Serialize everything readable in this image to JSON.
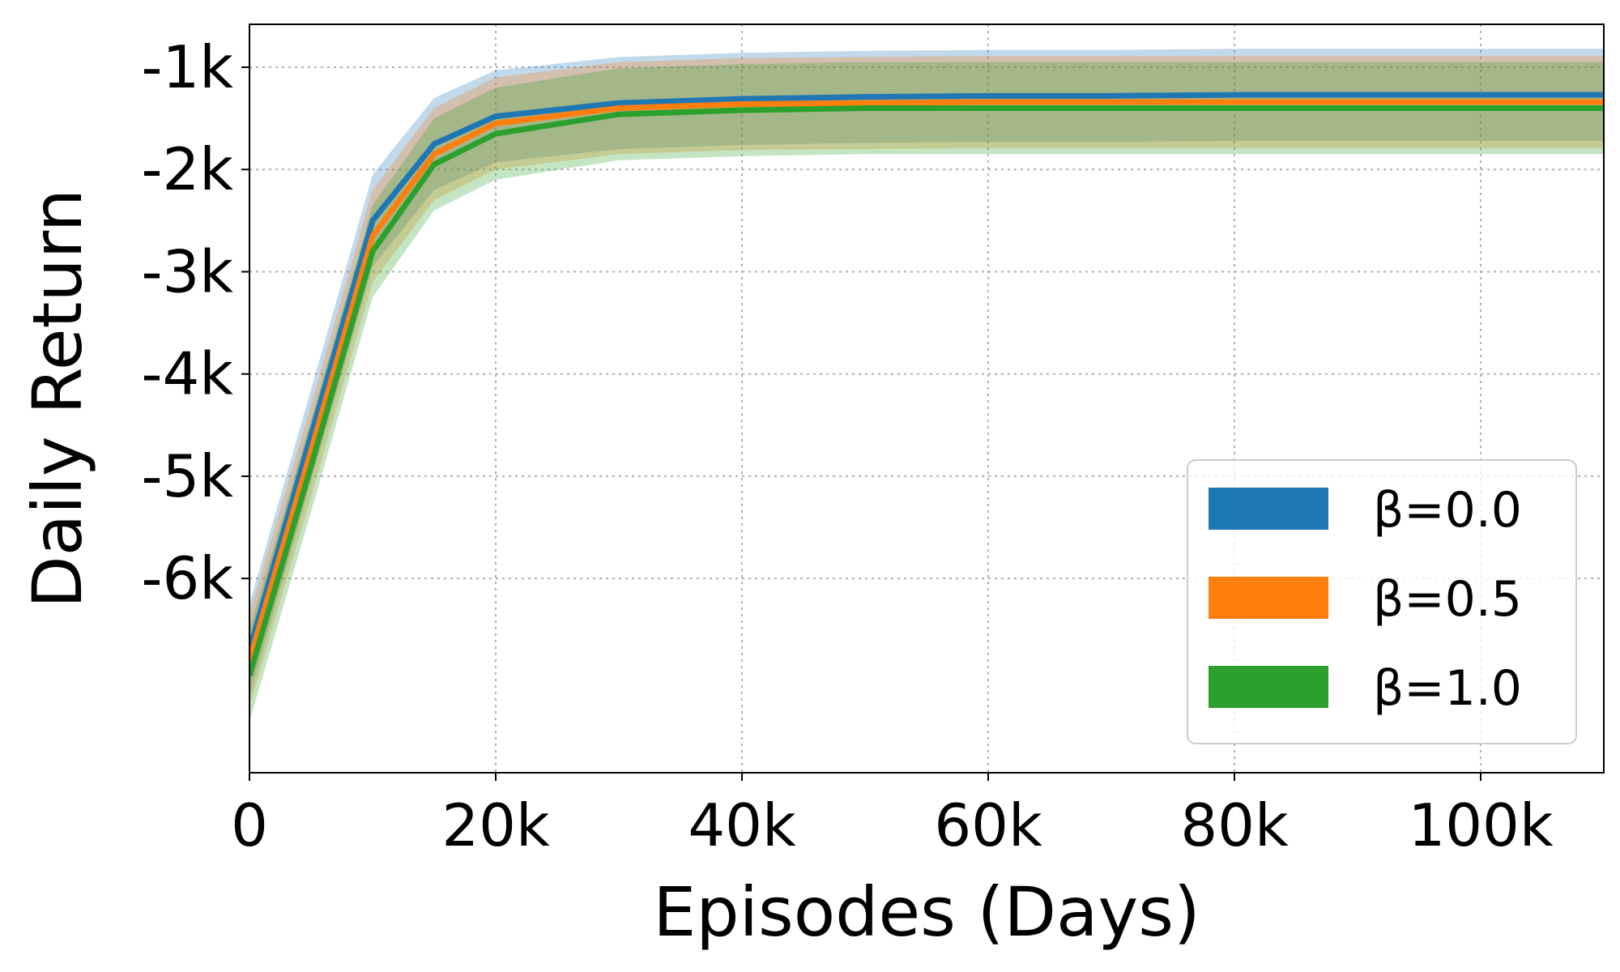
{
  "chart_data": {
    "type": "line",
    "xlabel": "Episodes (Days)",
    "ylabel": "Daily Return",
    "xlim": [
      0,
      110000
    ],
    "ylim": [
      -7900,
      -580
    ],
    "xticks": [
      {
        "value": 0,
        "label": "0"
      },
      {
        "value": 20000,
        "label": "20k"
      },
      {
        "value": 40000,
        "label": "40k"
      },
      {
        "value": 60000,
        "label": "60k"
      },
      {
        "value": 80000,
        "label": "80k"
      },
      {
        "value": 100000,
        "label": "100k"
      }
    ],
    "yticks": [
      {
        "value": -1000,
        "label": "-1k"
      },
      {
        "value": -2000,
        "label": "-2k"
      },
      {
        "value": -3000,
        "label": "-3k"
      },
      {
        "value": -4000,
        "label": "-4k"
      },
      {
        "value": -5000,
        "label": "-5k"
      },
      {
        "value": -6000,
        "label": "-6k"
      }
    ],
    "grid": true,
    "legend_position": "lower-right",
    "x": [
      0,
      5000,
      10000,
      15000,
      20000,
      30000,
      40000,
      50000,
      60000,
      70000,
      80000,
      90000,
      100000,
      110000
    ],
    "series": [
      {
        "name": "β=0.0",
        "color": "#1f77b4",
        "values": [
          -6700,
          -4600,
          -2500,
          -1750,
          -1480,
          -1350,
          -1310,
          -1290,
          -1280,
          -1280,
          -1270,
          -1270,
          -1270,
          -1270
        ],
        "band": 450
      },
      {
        "name": "β=0.5",
        "color": "#ff7f0e",
        "values": [
          -6800,
          -4750,
          -2650,
          -1850,
          -1550,
          -1400,
          -1360,
          -1350,
          -1340,
          -1340,
          -1340,
          -1340,
          -1340,
          -1340
        ],
        "band": 450
      },
      {
        "name": "β=1.0",
        "color": "#2ca02c",
        "values": [
          -6950,
          -4900,
          -2800,
          -1950,
          -1650,
          -1460,
          -1420,
          -1400,
          -1400,
          -1400,
          -1400,
          -1400,
          -1400,
          -1400
        ],
        "band": 450
      }
    ]
  }
}
